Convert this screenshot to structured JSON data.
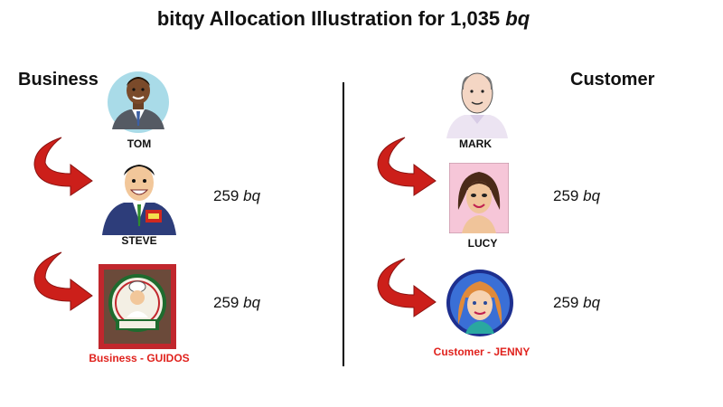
{
  "title": {
    "text": "bitqy Allocation Illustration for 1,035",
    "unit": "bq"
  },
  "colors": {
    "arrow": "#cc1f1a",
    "highlight_name": "#e0221d"
  },
  "business": {
    "heading": "Business",
    "people": [
      {
        "name": "TOM",
        "icon": "businessman-avatar-icon"
      },
      {
        "name": "STEVE",
        "amount": "259",
        "unit": "bq",
        "icon": "salesman-avatar-icon"
      },
      {
        "name": "Business - GUIDOS",
        "amount": "259",
        "unit": "bq",
        "icon": "guidos-sign-icon"
      }
    ]
  },
  "customer": {
    "heading": "Customer",
    "people": [
      {
        "name": "MARK",
        "icon": "bald-man-avatar-icon"
      },
      {
        "name": "LUCY",
        "amount": "259",
        "unit": "bq",
        "icon": "woman-avatar-icon"
      },
      {
        "name": "Customer - JENNY",
        "amount": "259",
        "unit": "bq",
        "icon": "girl-avatar-icon"
      }
    ]
  }
}
